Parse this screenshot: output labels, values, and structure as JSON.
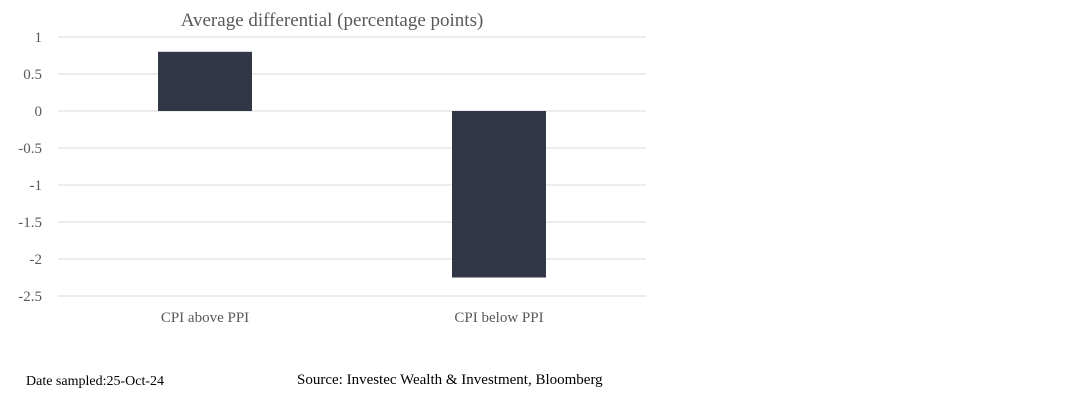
{
  "chart_data": {
    "type": "bar",
    "title": "Average differential (percentage points)",
    "categories": [
      "CPI above PPI",
      "CPI below PPI"
    ],
    "values": [
      0.8,
      -2.25
    ],
    "ylim": [
      -2.5,
      1
    ],
    "yticks": [
      1,
      0.5,
      0,
      -0.5,
      -1,
      -1.5,
      -2,
      -2.5
    ],
    "ytick_labels": [
      "1",
      "0.5",
      "0",
      "-0.5",
      "-1",
      "-1.5",
      "-2",
      "-2.5"
    ],
    "grid": true,
    "bar_color": "#323748"
  },
  "footer": {
    "date_sampled": "Date sampled:25-Oct-24",
    "source": "Source: Investec Wealth & Investment, Bloomberg"
  }
}
